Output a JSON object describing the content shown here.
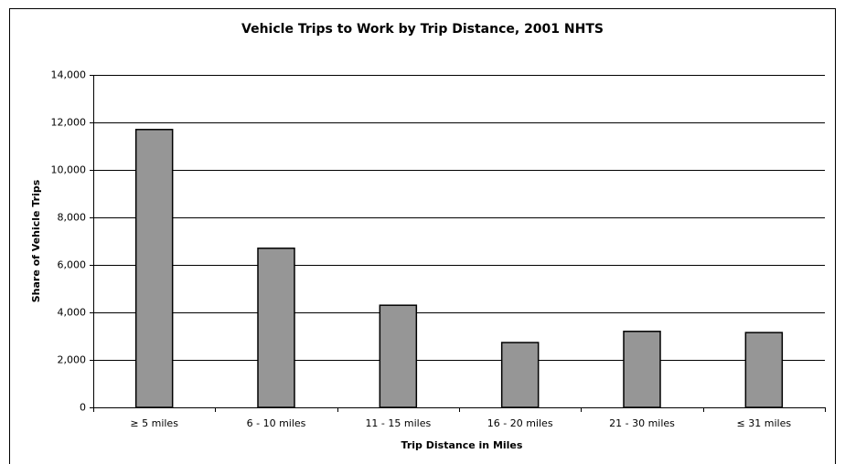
{
  "chart_data": {
    "type": "bar",
    "title": "Vehicle Trips to Work by Trip Distance, 2001 NHTS",
    "x_label": "Trip Distance in Miles",
    "y_label": "Share of Vehicle Trips",
    "categories": [
      "≥ 5 miles",
      "6 - 10 miles",
      "11 - 15 miles",
      "16 - 20 miles",
      "21 - 30 miles",
      "≤ 31 miles"
    ],
    "values": [
      11700,
      6700,
      4300,
      2730,
      3200,
      3150
    ],
    "color": "#969696",
    "ylim": [
      0,
      14000
    ],
    "yticks": [
      0,
      {
        "value": 2000,
        "label": "2,000"
      },
      {
        "value": 4000,
        "label": "4,000"
      },
      {
        "value": 6000,
        "label": "6,000"
      },
      {
        "value": 8000,
        "label": "8,000"
      },
      {
        "value": 10000,
        "label": "10,000"
      },
      {
        "value": 12000,
        "label": "12,000"
      },
      {
        "value": 14000,
        "label": "14,000"
      }
    ],
    "grid": true
  }
}
